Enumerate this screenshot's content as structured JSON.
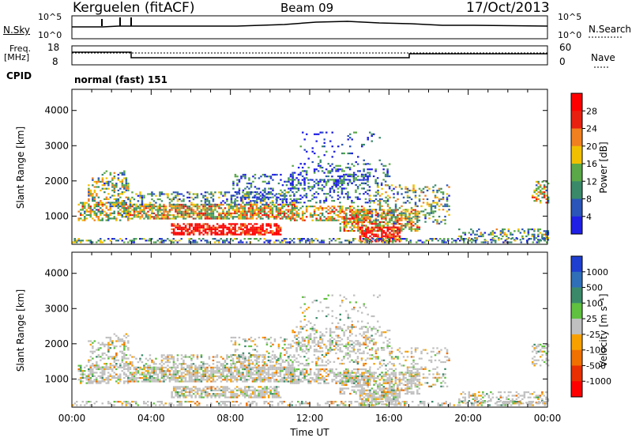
{
  "header": {
    "station": "Kerguelen (fitACF)",
    "beam": "Beam 09",
    "date": "17/Oct/2013"
  },
  "strips": {
    "nsky_label": "N.Sky",
    "nsearch_label": "N.Search",
    "exp_top": "10^5",
    "exp_bottom": "10^0",
    "freq_label": "Freq.",
    "freq_unit": "[MHz]",
    "freq_top": "18",
    "freq_bottom": "8",
    "nave_label": "Nave",
    "nave_top": "60",
    "nave_bottom": "0",
    "cpid_label": "CPID",
    "cpid_value": "normal (fast) 151"
  },
  "chart_data": [
    {
      "type": "heatmap",
      "name": "power",
      "ylabel": "Slant Range [km]",
      "xlabel": "",
      "ylim": [
        200,
        4600
      ],
      "yticks": [
        "1000",
        "2000",
        "3000",
        "4000"
      ],
      "colorbar_label": "Power [dB]",
      "colorbar_ticks": [
        "4",
        "8",
        "12",
        "16",
        "20",
        "24",
        "28"
      ],
      "colors": [
        "#1f1fe6",
        "#2b55b8",
        "#3a8a6a",
        "#5aa848",
        "#f0c000",
        "#f08020",
        "#e82010",
        "#ff0000"
      ]
    },
    {
      "type": "heatmap",
      "name": "velocity",
      "ylabel": "Slant Range [km]",
      "xlabel": "Time UT",
      "ylim": [
        200,
        4600
      ],
      "xticks": [
        "00:00",
        "04:00",
        "08:00",
        "12:00",
        "16:00",
        "20:00",
        "00:00"
      ],
      "yticks": [
        "1000",
        "2000",
        "3000",
        "4000"
      ],
      "colorbar_label": "Velocity [m s⁻¹]",
      "colorbar_ticks": [
        "1000",
        "500",
        "100",
        "25",
        "-25",
        "-100",
        "-500",
        "-1000"
      ],
      "colors": [
        "#1f3fd0",
        "#2f6fb8",
        "#3a8a6a",
        "#60c040",
        "#c0c0c0",
        "#f8a000",
        "#f07000",
        "#e83000",
        "#ff0000"
      ]
    }
  ]
}
